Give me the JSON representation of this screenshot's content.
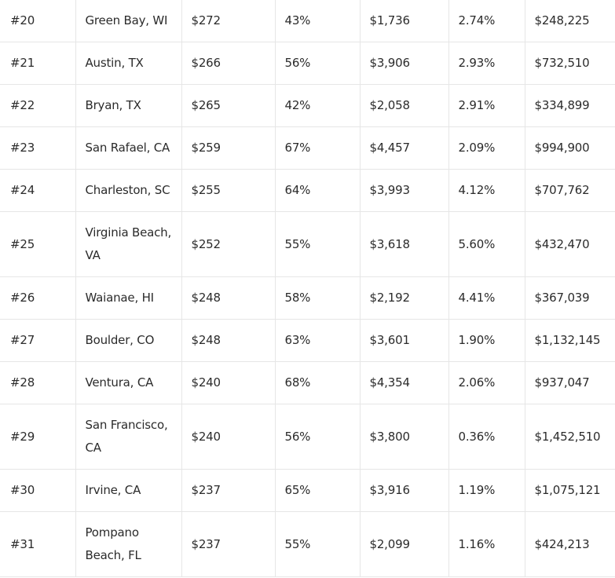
{
  "rows": [
    {
      "rank": "#20",
      "city": "Green Bay, WI",
      "col3": "$272",
      "col4": "43%",
      "col5": "$1,736",
      "col6": "2.74%",
      "col7": "$248,225"
    },
    {
      "rank": "#21",
      "city": "Austin, TX",
      "col3": "$266",
      "col4": "56%",
      "col5": "$3,906",
      "col6": "2.93%",
      "col7": "$732,510"
    },
    {
      "rank": "#22",
      "city": "Bryan, TX",
      "col3": "$265",
      "col4": "42%",
      "col5": "$2,058",
      "col6": "2.91%",
      "col7": "$334,899"
    },
    {
      "rank": "#23",
      "city": "San Rafael, CA",
      "col3": "$259",
      "col4": "67%",
      "col5": "$4,457",
      "col6": "2.09%",
      "col7": "$994,900"
    },
    {
      "rank": "#24",
      "city": "Charleston, SC",
      "col3": "$255",
      "col4": "64%",
      "col5": "$3,993",
      "col6": "4.12%",
      "col7": "$707,762"
    },
    {
      "rank": "#25",
      "city_line1": "Virginia Beach,",
      "city_line2": "VA",
      "col3": "$252",
      "col4": "55%",
      "col5": "$3,618",
      "col6": "5.60%",
      "col7": "$432,470"
    },
    {
      "rank": "#26",
      "city": "Waianae, HI",
      "col3": "$248",
      "col4": "58%",
      "col5": "$2,192",
      "col6": "4.41%",
      "col7": "$367,039"
    },
    {
      "rank": "#27",
      "city": "Boulder, CO",
      "col3": "$248",
      "col4": "63%",
      "col5": "$3,601",
      "col6": "1.90%",
      "col7": "$1,132,145"
    },
    {
      "rank": "#28",
      "city": "Ventura, CA",
      "col3": "$240",
      "col4": "68%",
      "col5": "$4,354",
      "col6": "2.06%",
      "col7": "$937,047"
    },
    {
      "rank": "#29",
      "city_line1": "San Francisco,",
      "city_line2": "CA",
      "col3": "$240",
      "col4": "56%",
      "col5": "$3,800",
      "col6": "0.36%",
      "col7": "$1,452,510"
    },
    {
      "rank": "#30",
      "city": "Irvine, CA",
      "col3": "$237",
      "col4": "65%",
      "col5": "$3,916",
      "col6": "1.19%",
      "col7": "$1,075,121"
    },
    {
      "rank": "#31",
      "city_line1": "Pompano",
      "city_line2": "Beach, FL",
      "col3": "$237",
      "col4": "55%",
      "col5": "$2,099",
      "col6": "1.16%",
      "col7": "$424,213"
    }
  ],
  "colors": {
    "border": "#e6e6e6",
    "text": "#2b2b2b",
    "background": "#ffffff"
  }
}
